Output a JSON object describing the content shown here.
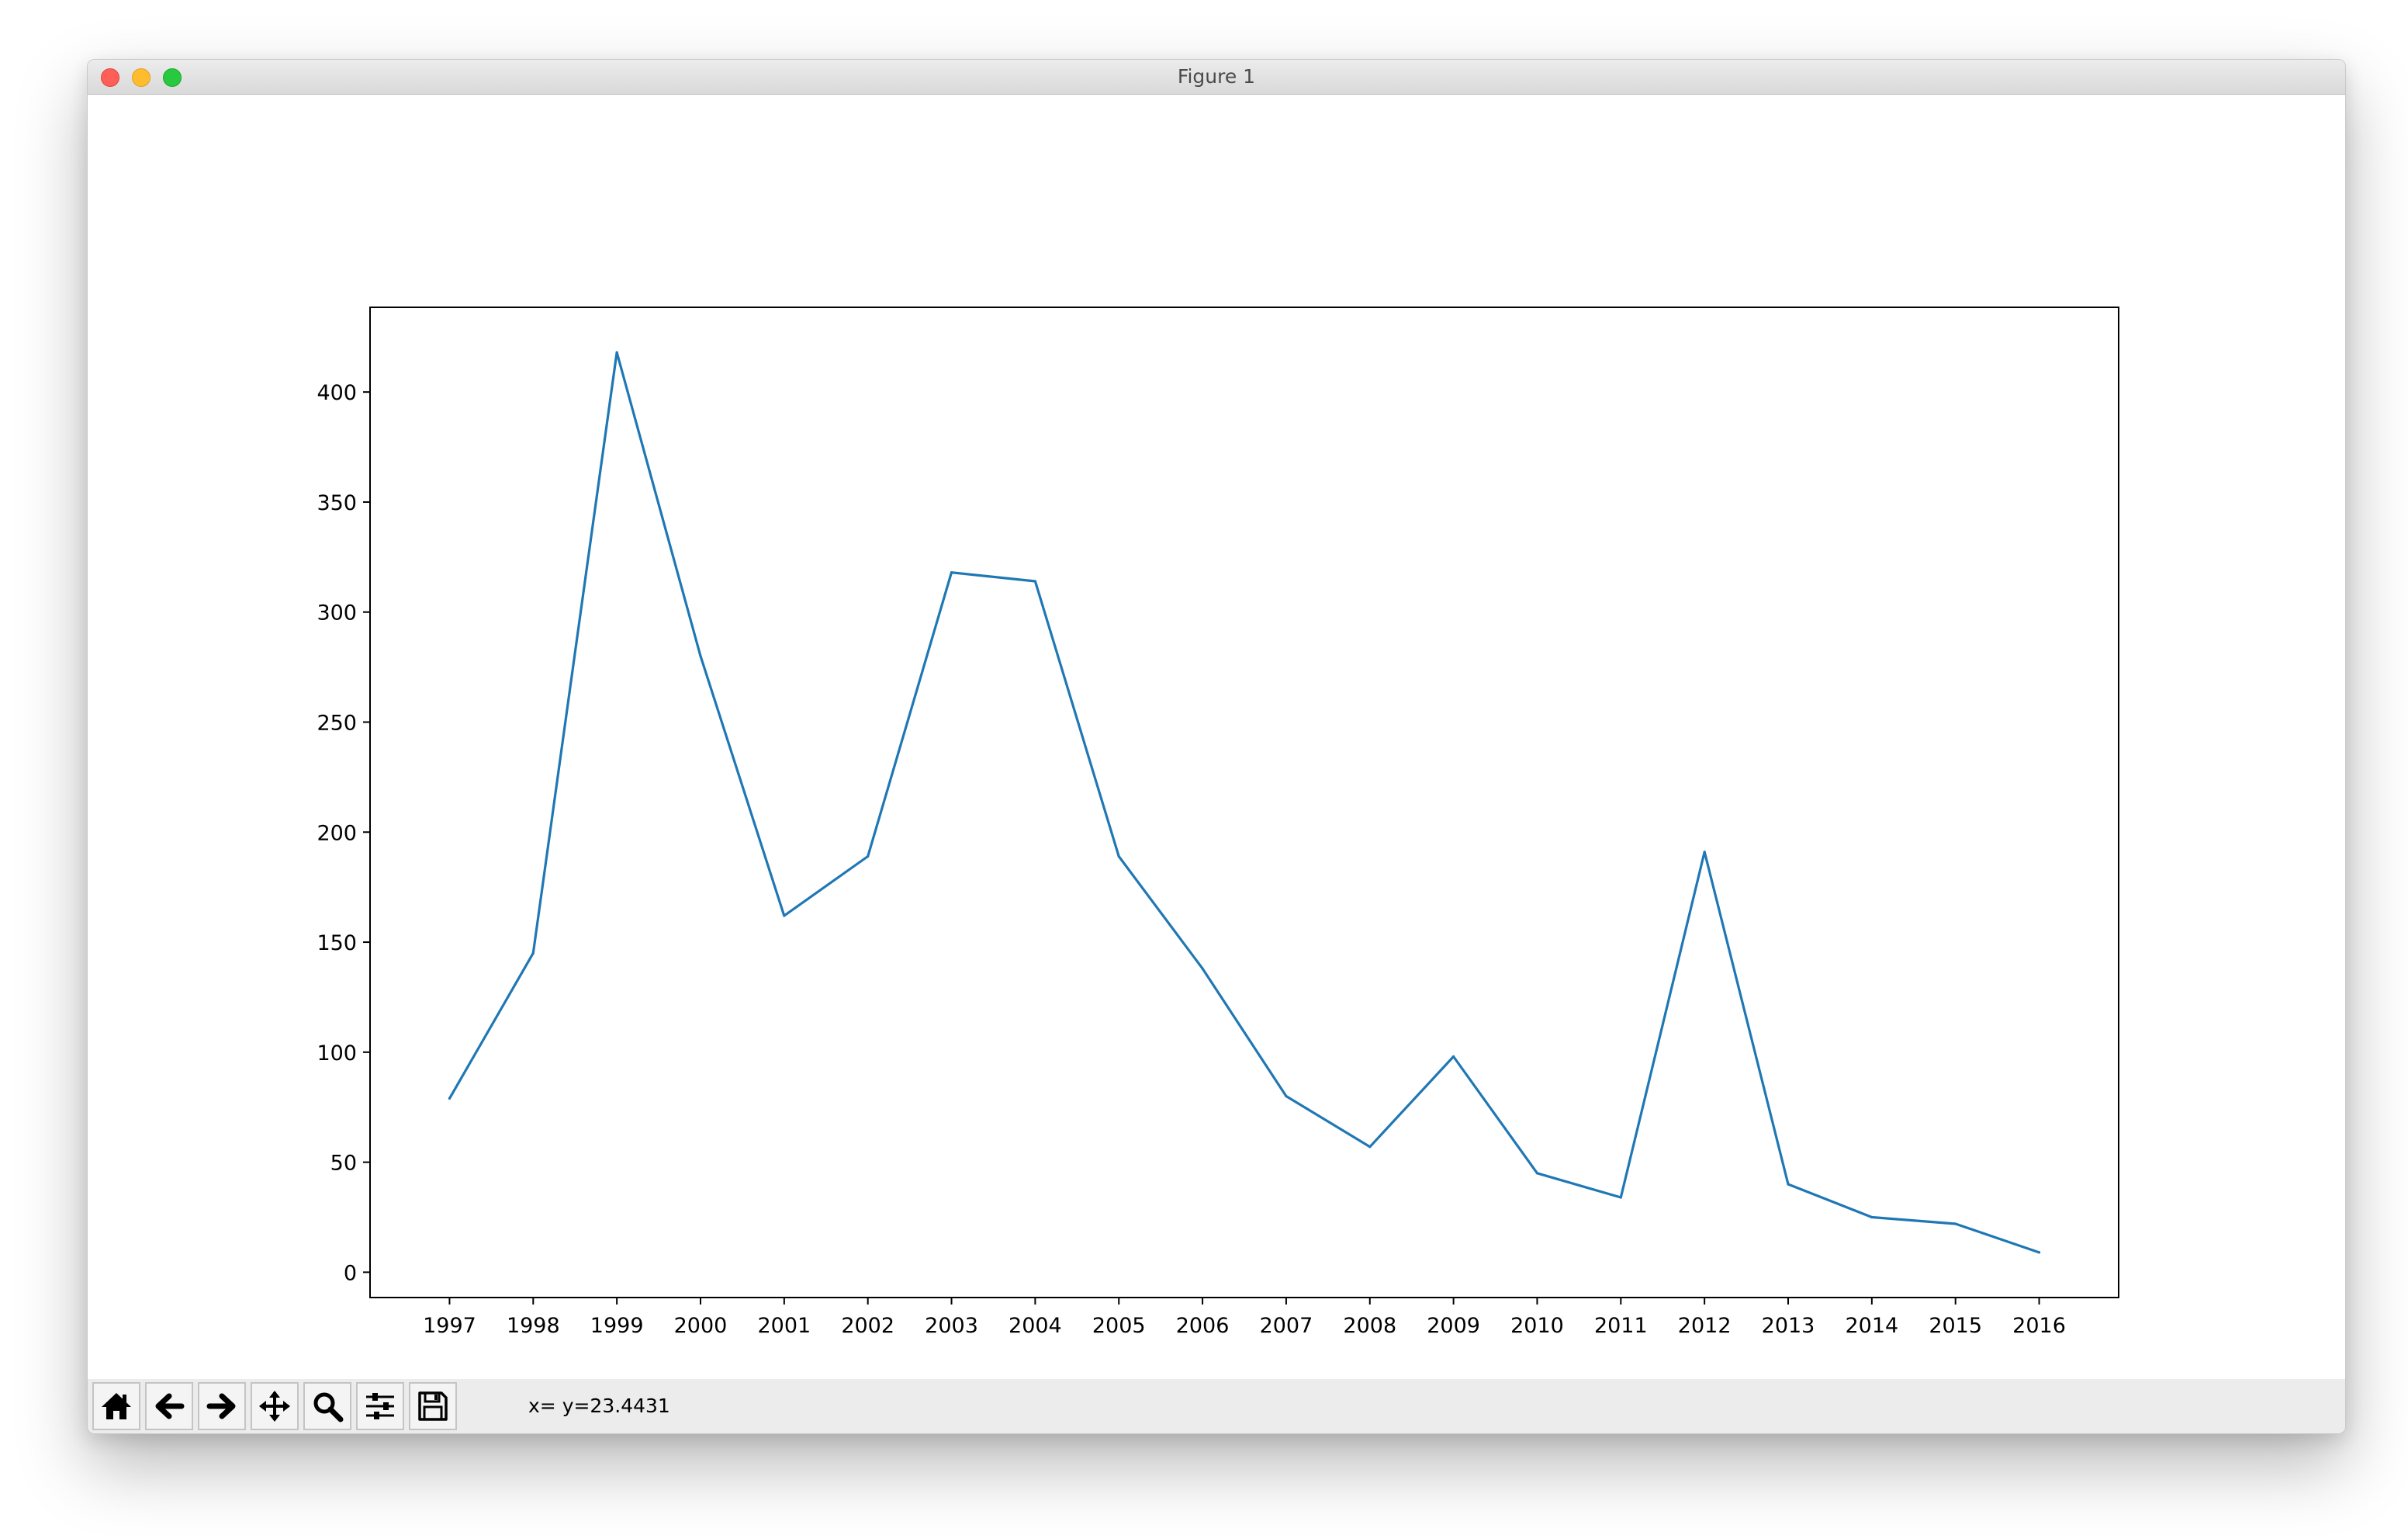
{
  "window": {
    "title": "Figure 1"
  },
  "toolbar": {
    "tools": [
      {
        "name": "home",
        "icon": "home-icon"
      },
      {
        "name": "back",
        "icon": "arrow-left-icon"
      },
      {
        "name": "forward",
        "icon": "arrow-right-icon"
      },
      {
        "name": "pan",
        "icon": "move-arrows-icon"
      },
      {
        "name": "zoom",
        "icon": "magnifier-icon"
      },
      {
        "name": "configure-subplots",
        "icon": "sliders-icon"
      },
      {
        "name": "save",
        "icon": "floppy-disk-icon"
      }
    ],
    "status": "x= y=23.4431"
  },
  "chart_data": {
    "type": "line",
    "x": [
      "1997",
      "1998",
      "1999",
      "2000",
      "2001",
      "2002",
      "2003",
      "2004",
      "2005",
      "2006",
      "2007",
      "2008",
      "2009",
      "2010",
      "2011",
      "2012",
      "2013",
      "2014",
      "2015",
      "2016"
    ],
    "series": [
      {
        "values": [
          79,
          145,
          418,
          280,
          162,
          189,
          318,
          314,
          189,
          138,
          80,
          57,
          98,
          45,
          34,
          191,
          40,
          25,
          22,
          9
        ],
        "color": "#1f77b4"
      }
    ],
    "yticks": [
      0,
      50,
      100,
      150,
      200,
      250,
      300,
      350,
      400
    ],
    "ylim": [
      -11.5,
      438.5
    ],
    "xlim": [
      -0.95,
      19.95
    ],
    "grid": false,
    "title": "",
    "xlabel": "",
    "ylabel": ""
  }
}
